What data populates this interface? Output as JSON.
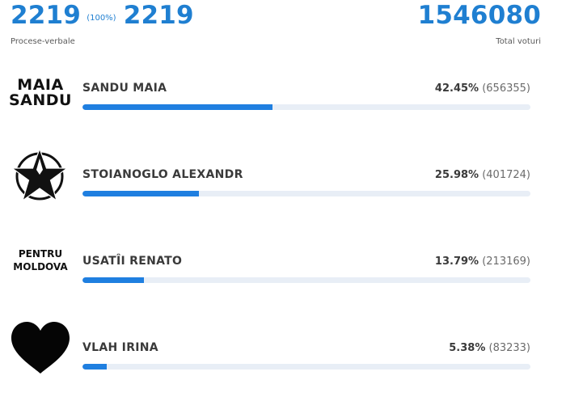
{
  "header": {
    "counted": "2219",
    "counted_pct": "(100%)",
    "total_reports": "2219",
    "reports_label": "Procese-verbale",
    "total_votes": "1546080",
    "votes_label": "Total voturi"
  },
  "candidates": [
    {
      "logo_type": "text-logo",
      "logo_line1": "MAIA",
      "logo_line2": "SANDU",
      "name": "SANDU MAIA",
      "percent": "42.45%",
      "votes": "(656355)",
      "share": 0.4245
    },
    {
      "logo_type": "star-icon",
      "name": "STOIANOGLO ALEXANDR",
      "percent": "25.98%",
      "votes": "(401724)",
      "share": 0.2598
    },
    {
      "logo_type": "text-logo",
      "logo_line1": "PENTRU",
      "logo_line2": "MOLDOVA",
      "name": "USATÎI RENATO",
      "percent": "13.79%",
      "votes": "(213169)",
      "share": 0.1379
    },
    {
      "logo_type": "heart-icon",
      "name": "VLAH IRINA",
      "percent": "5.38%",
      "votes": "(83233)",
      "share": 0.0538
    }
  ],
  "colors": {
    "accent": "#1f7fd1",
    "bar_fill": "#1f7fe0",
    "bar_track": "#e8eef6"
  }
}
